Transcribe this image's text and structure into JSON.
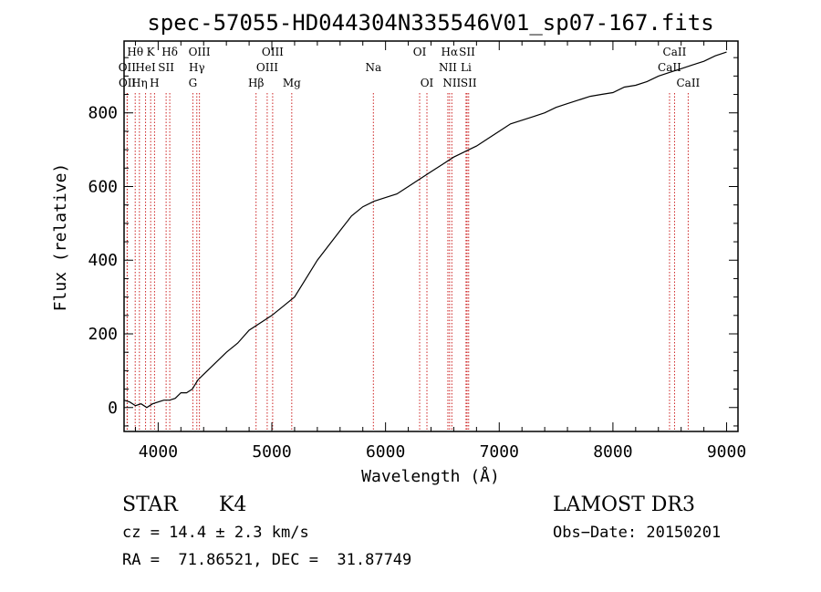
{
  "chart_data": {
    "type": "line",
    "title": "spec-57055-HD044304N335546V01_sp07-167.fits",
    "xlabel": "Wavelength (Å)",
    "ylabel": "Flux (relative)",
    "xlim": [
      3700,
      9100
    ],
    "ylim": [
      -65,
      995
    ],
    "xticks": [
      4000,
      5000,
      6000,
      7000,
      8000,
      9000
    ],
    "yticks": [
      0,
      200,
      400,
      600,
      800
    ],
    "grid": false,
    "series": [
      {
        "name": "spectrum",
        "x": [
          3700,
          3750,
          3800,
          3850,
          3900,
          3950,
          4000,
          4050,
          4100,
          4150,
          4200,
          4250,
          4300,
          4350,
          4400,
          4500,
          4600,
          4700,
          4800,
          4900,
          5000,
          5100,
          5200,
          5300,
          5400,
          5500,
          5600,
          5700,
          5800,
          5900,
          6000,
          6100,
          6200,
          6300,
          6400,
          6500,
          6600,
          6700,
          6800,
          6900,
          7000,
          7100,
          7200,
          7300,
          7400,
          7500,
          7600,
          7700,
          7800,
          7900,
          8000,
          8100,
          8200,
          8300,
          8400,
          8500,
          8600,
          8700,
          8800,
          8900,
          9000
        ],
        "y": [
          20,
          15,
          5,
          10,
          0,
          10,
          15,
          20,
          20,
          25,
          40,
          40,
          50,
          75,
          90,
          120,
          150,
          175,
          210,
          230,
          250,
          275,
          300,
          350,
          400,
          440,
          480,
          520,
          545,
          560,
          570,
          580,
          600,
          620,
          640,
          660,
          680,
          695,
          710,
          730,
          750,
          770,
          780,
          790,
          800,
          815,
          825,
          835,
          845,
          850,
          855,
          870,
          875,
          885,
          900,
          910,
          920,
          930,
          940,
          955,
          965
        ]
      }
    ],
    "line_markers": [
      {
        "label": "Hθ",
        "x": 3798,
        "row": 1
      },
      {
        "label": "K",
        "x": 3934,
        "row": 1
      },
      {
        "label": "Hδ",
        "x": 4102,
        "row": 1
      },
      {
        "label": "OIII",
        "x": 4363,
        "row": 1
      },
      {
        "label": "OIII",
        "x": 5007,
        "row": 1
      },
      {
        "label": "OI",
        "x": 6300,
        "row": 1
      },
      {
        "label": "Hα",
        "x": 6563,
        "row": 1
      },
      {
        "label": "SII",
        "x": 6717,
        "row": 1
      },
      {
        "label": "CaII",
        "x": 8542,
        "row": 1
      },
      {
        "label": "OII",
        "x": 3727,
        "row": 2
      },
      {
        "label": "HeI",
        "x": 3889,
        "row": 2
      },
      {
        "label": "SII",
        "x": 4070,
        "row": 2
      },
      {
        "label": "Hγ",
        "x": 4340,
        "row": 2
      },
      {
        "label": "OIII",
        "x": 4959,
        "row": 2
      },
      {
        "label": "Na",
        "x": 5893,
        "row": 2
      },
      {
        "label": "NII",
        "x": 6548,
        "row": 2
      },
      {
        "label": "Li",
        "x": 6708,
        "row": 2
      },
      {
        "label": "CaII",
        "x": 8498,
        "row": 2
      },
      {
        "label": "OII",
        "x": 3729,
        "row": 3
      },
      {
        "label": "Hη",
        "x": 3835,
        "row": 3
      },
      {
        "label": "H",
        "x": 3968,
        "row": 3
      },
      {
        "label": "G",
        "x": 4305,
        "row": 3
      },
      {
        "label": "Hβ",
        "x": 4861,
        "row": 3
      },
      {
        "label": "Mg",
        "x": 5175,
        "row": 3
      },
      {
        "label": "OI",
        "x": 6364,
        "row": 3
      },
      {
        "label": "NII",
        "x": 6583,
        "row": 3
      },
      {
        "label": "SII",
        "x": 6731,
        "row": 3
      },
      {
        "label": "CaII",
        "x": 8662,
        "row": 3
      }
    ]
  },
  "info": {
    "object_class": "STAR",
    "subclass": "K4",
    "survey": "LAMOST DR3",
    "redshift": "cz = 14.4 ± 2.3 km/s",
    "obs_date": "Obs−Date: 20150201",
    "coords": "RA =  71.86521, DEC =  31.87749"
  },
  "colors": {
    "marker": "#cc2222",
    "ink": "#000000"
  }
}
